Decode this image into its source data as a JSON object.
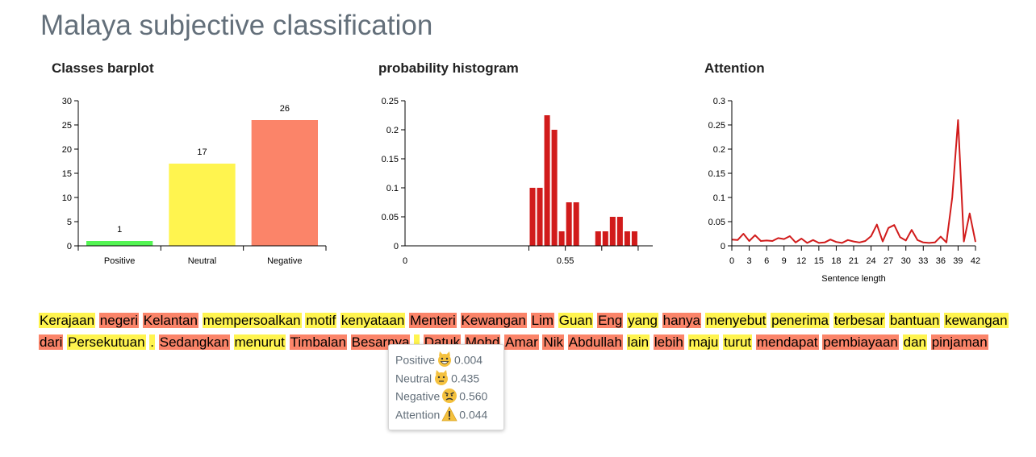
{
  "page": {
    "title": "Malaya subjective classification"
  },
  "colors": {
    "positive": "#53f553",
    "neutral": "#fff44f",
    "negative": "#fb8469",
    "histogram": "#d11b1b",
    "attention_line": "#d11b1b"
  },
  "chart_data": [
    {
      "type": "bar",
      "title": "Classes barplot",
      "categories": [
        "Positive",
        "Neutral",
        "Negative"
      ],
      "values": [
        1,
        17,
        26
      ],
      "ylim": [
        0,
        30
      ],
      "yticks": [
        0,
        5,
        10,
        15,
        20,
        25,
        30
      ],
      "grid": false
    },
    {
      "type": "bar",
      "title": "probability histogram",
      "bins_x": [
        0.425,
        0.45,
        0.475,
        0.5,
        0.525,
        0.55,
        0.575,
        0.6,
        0.625,
        0.65,
        0.675,
        0.7,
        0.725,
        0.75,
        0.775,
        0.8
      ],
      "values": [
        0.1,
        0.1,
        0.225,
        0.2,
        0.025,
        0.075,
        0.075,
        0,
        0,
        0.025,
        0.025,
        0.05,
        0.05,
        0.025,
        0.025,
        0
      ],
      "xlim": [
        0,
        0.85
      ],
      "xticks": [
        0,
        0.55
      ],
      "xtick_labels": [
        "0",
        "0.55"
      ],
      "ylim": [
        0,
        0.25
      ],
      "yticks": [
        0,
        0.05,
        0.1,
        0.15,
        0.2,
        0.25
      ],
      "ytick_labels": [
        "0",
        "0.05",
        "0.1",
        "0.15",
        "0.2",
        "0.25"
      ],
      "grid": false
    },
    {
      "type": "line",
      "title": "Attention",
      "xlabel": "Sentence length",
      "x": [
        0,
        1,
        2,
        3,
        4,
        5,
        6,
        7,
        8,
        9,
        10,
        11,
        12,
        13,
        14,
        15,
        16,
        17,
        18,
        19,
        20,
        21,
        22,
        23,
        24,
        25,
        26,
        27,
        28,
        29,
        30,
        31,
        32,
        33,
        34,
        35,
        36,
        37,
        38,
        39,
        40,
        41,
        42
      ],
      "values": [
        0.013,
        0.012,
        0.025,
        0.01,
        0.022,
        0.01,
        0.011,
        0.01,
        0.016,
        0.014,
        0.02,
        0.007,
        0.015,
        0.006,
        0.012,
        0.006,
        0.007,
        0.013,
        0.008,
        0.006,
        0.012,
        0.009,
        0.007,
        0.01,
        0.02,
        0.044,
        0.009,
        0.037,
        0.043,
        0.018,
        0.011,
        0.033,
        0.012,
        0.007,
        0.006,
        0.007,
        0.019,
        0.007,
        0.1,
        0.26,
        0.009,
        0.067,
        0.008
      ],
      "xlim": [
        0,
        42
      ],
      "xticks": [
        0,
        3,
        6,
        9,
        12,
        15,
        18,
        21,
        24,
        27,
        30,
        33,
        36,
        39,
        42
      ],
      "ylim": [
        0,
        0.3
      ],
      "yticks": [
        0,
        0.05,
        0.1,
        0.15,
        0.2,
        0.25,
        0.3
      ],
      "ytick_labels": [
        "0",
        "0.05",
        "0.1",
        "0.15",
        "0.2",
        "0.25",
        "0.3"
      ],
      "grid": false
    }
  ],
  "sentence": {
    "tokens": [
      {
        "text": "Kerajaan",
        "cls": "neutral"
      },
      {
        "text": "negeri",
        "cls": "negative"
      },
      {
        "text": "Kelantan",
        "cls": "negative"
      },
      {
        "text": "mempersoalkan",
        "cls": "neutral"
      },
      {
        "text": "motif",
        "cls": "neutral"
      },
      {
        "text": "kenyataan",
        "cls": "neutral"
      },
      {
        "text": "Menteri",
        "cls": "negative"
      },
      {
        "text": "Kewangan",
        "cls": "negative"
      },
      {
        "text": "Lim",
        "cls": "negative"
      },
      {
        "text": "Guan",
        "cls": "neutral"
      },
      {
        "text": "Eng",
        "cls": "negative"
      },
      {
        "text": "yang",
        "cls": "neutral"
      },
      {
        "text": "hanya",
        "cls": "negative"
      },
      {
        "text": "menyebut",
        "cls": "neutral"
      },
      {
        "text": "penerima",
        "cls": "neutral"
      },
      {
        "text": "terbesar",
        "cls": "neutral"
      },
      {
        "text": "bantuan",
        "cls": "neutral"
      },
      {
        "text": "kewangan",
        "cls": "neutral"
      },
      {
        "text": "dari",
        "cls": "negative"
      },
      {
        "text": "Persekutuan",
        "cls": "neutral"
      },
      {
        "text": ".",
        "cls": "neutral"
      },
      {
        "text": "Sedangkan",
        "cls": "negative"
      },
      {
        "text": "menurut",
        "cls": "neutral"
      },
      {
        "text": "Timbalan",
        "cls": "negative"
      },
      {
        "text": "Besarnya",
        "cls": "negative"
      },
      {
        "text": ",",
        "cls": "neutral"
      },
      {
        "text": "Datuk",
        "cls": "negative"
      },
      {
        "text": "Mohd",
        "cls": "negative"
      },
      {
        "text": "Amar",
        "cls": "negative"
      },
      {
        "text": "Nik",
        "cls": "negative"
      },
      {
        "text": "Abdullah",
        "cls": "negative"
      },
      {
        "text": "lain",
        "cls": "neutral"
      },
      {
        "text": "lebih",
        "cls": "negative"
      },
      {
        "text": "maju",
        "cls": "neutral"
      },
      {
        "text": "turut",
        "cls": "neutral"
      },
      {
        "text": "mendapat",
        "cls": "negative"
      },
      {
        "text": "pembiayaan",
        "cls": "negative"
      },
      {
        "text": "dan",
        "cls": "neutral"
      },
      {
        "text": "pinjaman",
        "cls": "negative"
      }
    ]
  },
  "tooltip": {
    "rows": [
      {
        "label": "Positive",
        "value": "0.004",
        "icon": "grinning-cat-icon"
      },
      {
        "label": "Neutral",
        "value": "0.435",
        "icon": "neutral-cat-icon"
      },
      {
        "label": "Negative",
        "value": "0.560",
        "icon": "angry-face-icon"
      },
      {
        "label": "Attention",
        "value": "0.044",
        "icon": "warning-icon"
      }
    ]
  }
}
